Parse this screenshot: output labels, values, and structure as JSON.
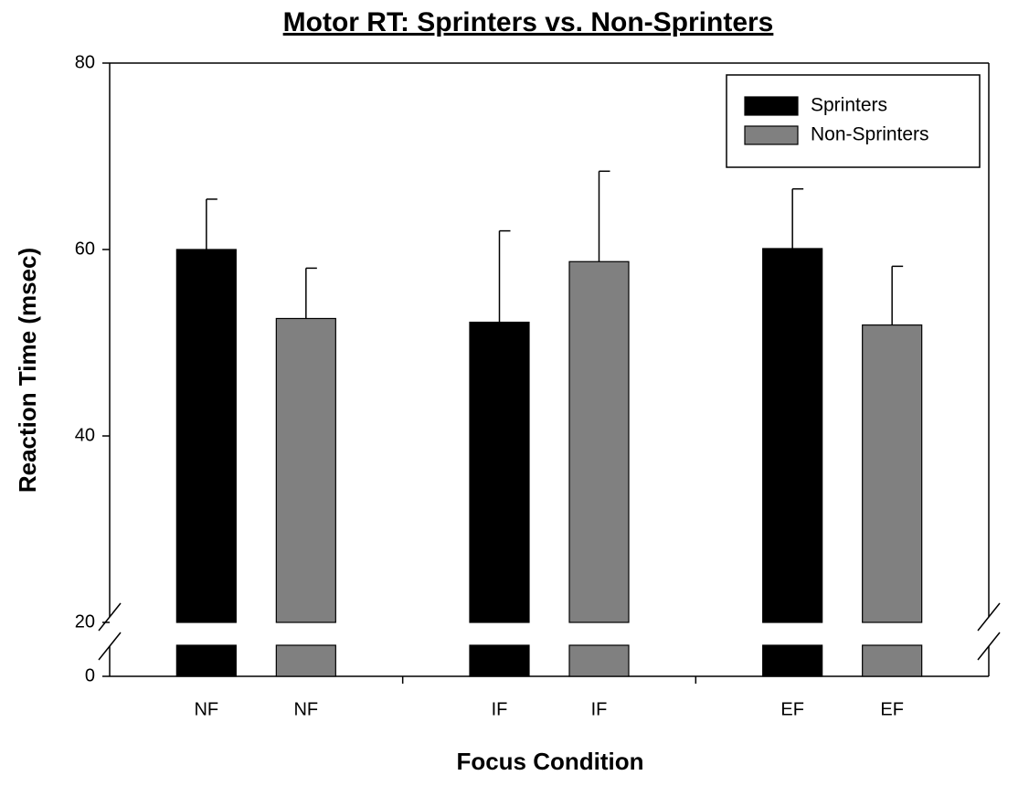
{
  "chart_data": {
    "type": "bar",
    "title": "Motor RT: Sprinters vs. Non-Sprinters",
    "x_label": "Focus Condition",
    "y_label": "Reaction Time (msec)",
    "categories": [
      "NF",
      "IF",
      "EF"
    ],
    "series": [
      {
        "name": "Sprinters",
        "color": "#000000",
        "values": [
          60.0,
          52.2,
          60.1
        ],
        "errors": [
          5.4,
          9.8,
          6.4
        ]
      },
      {
        "name": "Non-Sprinters",
        "color": "#808080",
        "values": [
          52.6,
          58.7,
          51.9
        ],
        "errors": [
          5.4,
          9.7,
          6.3
        ]
      }
    ],
    "ylim": [
      0,
      80
    ],
    "yticks": [
      0,
      20,
      40,
      60,
      80
    ],
    "axis_break": true,
    "legend": "upper right",
    "grid": false
  }
}
